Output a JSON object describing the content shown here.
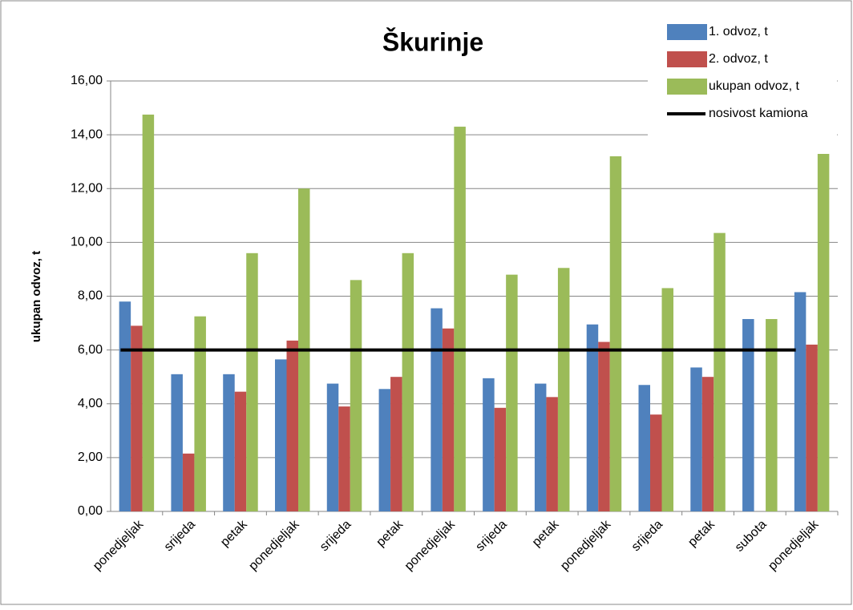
{
  "chart_data": {
    "type": "bar",
    "title": "Škurinje",
    "y_label": "ukupan odvoz, t",
    "categories": [
      "ponedjeljak",
      "srijeda",
      "petak",
      "ponedjeljak",
      "srijeda",
      "petak",
      "ponedjeljak",
      "srijeda",
      "petak",
      "ponedjeljak",
      "srijeda",
      "petak",
      "subota",
      "ponedjeljak"
    ],
    "series": [
      {
        "name": "1. odvoz, t",
        "color": "#4f81bd",
        "values": [
          7.8,
          5.1,
          5.1,
          5.65,
          4.75,
          4.55,
          7.55,
          4.95,
          4.75,
          6.95,
          4.7,
          5.35,
          7.15,
          8.15
        ]
      },
      {
        "name": "2. odvoz, t",
        "color": "#c0504d",
        "values": [
          6.9,
          2.15,
          4.45,
          6.35,
          3.9,
          5.0,
          6.8,
          3.85,
          4.25,
          6.3,
          3.6,
          5.0,
          null,
          6.2
        ]
      },
      {
        "name": "ukupan odvoz, t",
        "color": "#9bbb59",
        "values": [
          14.75,
          7.25,
          9.6,
          12.0,
          8.6,
          9.6,
          14.3,
          8.8,
          9.05,
          13.2,
          8.3,
          10.35,
          7.15,
          14.4
        ]
      },
      {
        "name": "nosivost kamiona",
        "color": "#000000",
        "type": "line",
        "values": [
          6,
          6,
          6,
          6,
          6,
          6,
          6,
          6,
          6,
          6,
          6,
          6,
          6,
          6
        ]
      }
    ],
    "ylim": [
      0,
      16
    ],
    "yticks": [
      {
        "value": 0,
        "label": "0,00"
      },
      {
        "value": 2,
        "label": "2,00"
      },
      {
        "value": 4,
        "label": "4,00"
      },
      {
        "value": 6,
        "label": "6,00"
      },
      {
        "value": 8,
        "label": "8,00"
      },
      {
        "value": 10,
        "label": "10,00"
      },
      {
        "value": 12,
        "label": "12,00"
      },
      {
        "value": 14,
        "label": "14,00"
      },
      {
        "value": 16,
        "label": "16,00"
      }
    ],
    "grid": true,
    "legend": "top-right"
  }
}
